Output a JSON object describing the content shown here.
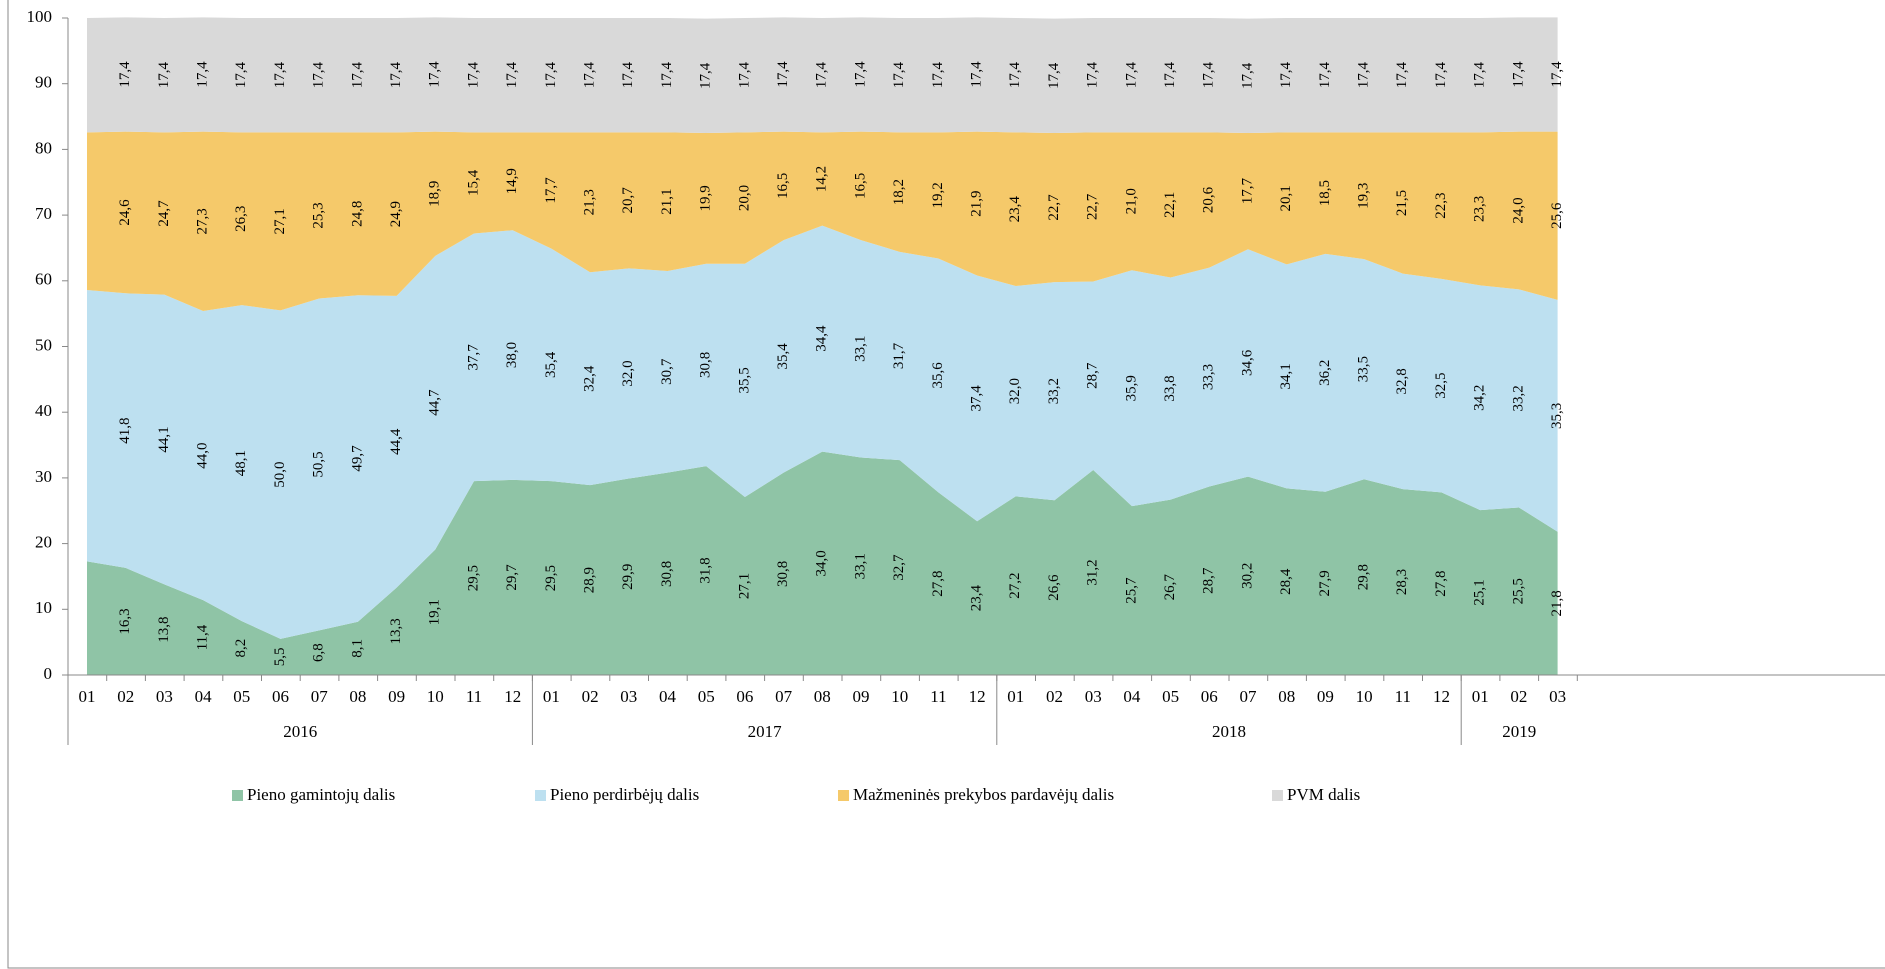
{
  "chart_data": {
    "type": "stacked_area",
    "categories": [
      "01",
      "02",
      "03",
      "04",
      "05",
      "06",
      "07",
      "08",
      "09",
      "10",
      "11",
      "12",
      "01",
      "02",
      "03",
      "04",
      "05",
      "06",
      "07",
      "08",
      "09",
      "10",
      "11",
      "12",
      "01",
      "02",
      "03",
      "04",
      "05",
      "06",
      "07",
      "08",
      "09",
      "10",
      "11",
      "12",
      "01",
      "02",
      "03"
    ],
    "category_groups": [
      {
        "label": "2016",
        "size": 12
      },
      {
        "label": "2017",
        "size": 12
      },
      {
        "label": "2018",
        "size": 12
      },
      {
        "label": "2019",
        "size": 3
      }
    ],
    "series": [
      {
        "name": "Pieno gamintojų dalis",
        "color": "#8fc4a6",
        "values": [
          17.3,
          16.3,
          13.8,
          11.4,
          8.2,
          5.5,
          6.8,
          8.1,
          13.3,
          19.1,
          29.5,
          29.7,
          29.5,
          28.9,
          29.9,
          30.8,
          31.8,
          27.1,
          30.8,
          34.0,
          33.1,
          32.7,
          27.8,
          23.4,
          27.2,
          26.6,
          31.2,
          25.7,
          26.7,
          28.7,
          30.2,
          28.4,
          27.9,
          29.8,
          28.3,
          27.8,
          25.1,
          25.5,
          21.8
        ],
        "value_labels": [
          null,
          "16,3",
          "13,8",
          "11,4",
          "8,2",
          "5,5",
          "6,8",
          "8,1",
          "13,3",
          "19,1",
          "29,5",
          "29,7",
          "29,5",
          "28,9",
          "29,9",
          "30,8",
          "31,8",
          "27,1",
          "30,8",
          "34,0",
          "33,1",
          "32,7",
          "27,8",
          "23,4",
          "27,2",
          "26,6",
          "31,2",
          "25,7",
          "26,7",
          "28,7",
          "30,2",
          "28,4",
          "27,9",
          "29,8",
          "28,3",
          "27,8",
          "25,1",
          "25,5",
          "21,8"
        ]
      },
      {
        "name": "Pieno perdirbėjų dalis",
        "color": "#bde0f0",
        "values": [
          41.3,
          41.8,
          44.1,
          44.0,
          48.1,
          50.0,
          50.5,
          49.7,
          44.4,
          44.7,
          37.7,
          38.0,
          35.4,
          32.4,
          32.0,
          30.7,
          30.8,
          35.5,
          35.4,
          34.4,
          33.1,
          31.7,
          35.6,
          37.4,
          32.0,
          33.2,
          28.7,
          35.9,
          33.8,
          33.3,
          34.6,
          34.1,
          36.2,
          33.5,
          32.8,
          32.5,
          34.2,
          33.2,
          35.3
        ],
        "value_labels": [
          null,
          "41,8",
          "44,1",
          "44,0",
          "48,1",
          "50,0",
          "50,5",
          "49,7",
          "44,4",
          "44,7",
          "37,7",
          "38,0",
          "35,4",
          "32,4",
          "32,0",
          "30,7",
          "30,8",
          "35,5",
          "35,4",
          "34,4",
          "33,1",
          "31,7",
          "35,6",
          "37,4",
          "32,0",
          "33,2",
          "28,7",
          "35,9",
          "33,8",
          "33,3",
          "34,6",
          "34,1",
          "36,2",
          "33,5",
          "32,8",
          "32,5",
          "34,2",
          "33,2",
          "35,3"
        ]
      },
      {
        "name": "Mažmeninės prekybos pardavėjų dalis",
        "color": "#f5c96a",
        "values": [
          24.0,
          24.6,
          24.7,
          27.3,
          26.3,
          27.1,
          25.3,
          24.8,
          24.9,
          18.9,
          15.4,
          14.9,
          17.7,
          21.3,
          20.7,
          21.1,
          19.9,
          20.0,
          16.5,
          14.2,
          16.5,
          18.2,
          19.2,
          21.9,
          23.4,
          22.7,
          22.7,
          21.0,
          22.1,
          20.6,
          17.7,
          20.1,
          18.5,
          19.3,
          21.5,
          22.3,
          23.3,
          24.0,
          25.6
        ],
        "value_labels": [
          null,
          "24,6",
          "24,7",
          "27,3",
          "26,3",
          "27,1",
          "25,3",
          "24,8",
          "24,9",
          "18,9",
          "15,4",
          "14,9",
          "17,7",
          "21,3",
          "20,7",
          "21,1",
          "19,9",
          "20,0",
          "16,5",
          "14,2",
          "16,5",
          "18,2",
          "19,2",
          "21,9",
          "23,4",
          "22,7",
          "22,7",
          "21,0",
          "22,1",
          "20,6",
          "17,7",
          "20,1",
          "18,5",
          "19,3",
          "21,5",
          "22,3",
          "23,3",
          "24,0",
          "25,6"
        ]
      },
      {
        "name": "PVM dalis",
        "color": "#d9d9d9",
        "values": [
          17.4,
          17.4,
          17.4,
          17.4,
          17.4,
          17.4,
          17.4,
          17.4,
          17.4,
          17.4,
          17.4,
          17.4,
          17.4,
          17.4,
          17.4,
          17.4,
          17.4,
          17.4,
          17.4,
          17.4,
          17.4,
          17.4,
          17.4,
          17.4,
          17.4,
          17.4,
          17.4,
          17.4,
          17.4,
          17.4,
          17.4,
          17.4,
          17.4,
          17.4,
          17.4,
          17.4,
          17.4,
          17.4,
          17.4
        ],
        "value_labels": [
          null,
          "17,4",
          "17,4",
          "17,4",
          "17,4",
          "17,4",
          "17,4",
          "17,4",
          "17,4",
          "17,4",
          "17,4",
          "17,4",
          "17,4",
          "17,4",
          "17,4",
          "17,4",
          "17,4",
          "17,4",
          "17,4",
          "17,4",
          "17,4",
          "17,4",
          "17,4",
          "17,4",
          "17,4",
          "17,4",
          "17,4",
          "17,4",
          "17,4",
          "17,4",
          "17,4",
          "17,4",
          "17,4",
          "17,4",
          "17,4",
          "17,4",
          "17,4",
          "17,4",
          "17,4"
        ]
      }
    ],
    "ylim": [
      0,
      100
    ],
    "yticks": [
      0,
      10,
      20,
      30,
      40,
      50,
      60,
      70,
      80,
      90,
      100
    ],
    "legend": "bottom"
  }
}
